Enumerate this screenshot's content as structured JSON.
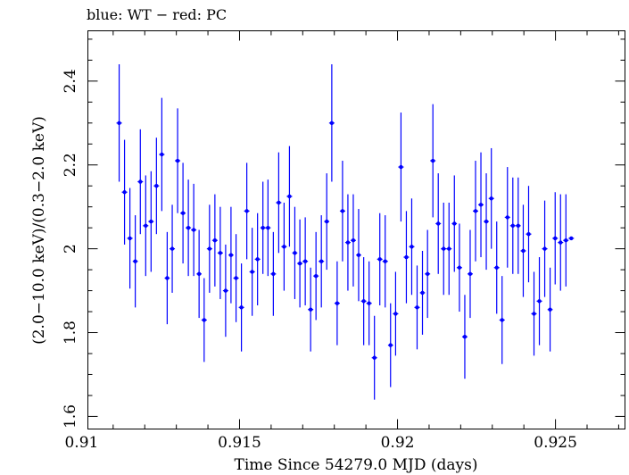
{
  "chart_data": {
    "type": "scatter",
    "title": "blue: WT − red: PC",
    "xlabel": "Time Since 54279.0 MJD (days)",
    "ylabel": "(2.0−10.0 keV)/(0.3−2.0 keV)",
    "xlim": [
      0.9102,
      0.9272
    ],
    "ylim": [
      1.57,
      2.52
    ],
    "x_ticks": [
      0.91,
      0.915,
      0.92,
      0.925
    ],
    "x_tick_labels": [
      "0.91",
      "0.915",
      "0.92",
      "0.925"
    ],
    "y_ticks": [
      1.6,
      1.8,
      2.0,
      2.2,
      2.4
    ],
    "y_tick_labels": [
      "1.6",
      "1.8",
      "2",
      "2.2",
      "2.4"
    ],
    "grid": false,
    "series": [
      {
        "color": "#0000ff",
        "x": [
          0.91119,
          0.91136,
          0.91153,
          0.9117,
          0.91186,
          0.91203,
          0.9122,
          0.91237,
          0.91254,
          0.91271,
          0.91287,
          0.91304,
          0.91321,
          0.91338,
          0.91355,
          0.91372,
          0.91388,
          0.91405,
          0.91422,
          0.91439,
          0.91456,
          0.91473,
          0.91489,
          0.91506,
          0.91523,
          0.9154,
          0.91557,
          0.91574,
          0.9159,
          0.91607,
          0.91624,
          0.91641,
          0.91658,
          0.91675,
          0.91691,
          0.91708,
          0.91725,
          0.91742,
          0.91759,
          0.91776,
          0.91792,
          0.91809,
          0.91826,
          0.91843,
          0.9186,
          0.91877,
          0.91893,
          0.9191,
          0.91927,
          0.91944,
          0.91961,
          0.91978,
          0.91994,
          0.92011,
          0.92028,
          0.92045,
          0.92062,
          0.92079,
          0.92095,
          0.92112,
          0.92129,
          0.92146,
          0.92163,
          0.9218,
          0.92196,
          0.92213,
          0.9223,
          0.92247,
          0.92264,
          0.92281,
          0.92297,
          0.92314,
          0.92331,
          0.92348,
          0.92365,
          0.92382,
          0.92398,
          0.92415,
          0.92432,
          0.92449,
          0.92466,
          0.92483,
          0.92499,
          0.92516,
          0.92533,
          0.9255
        ],
        "y": [
          2.3,
          2.135,
          2.025,
          1.97,
          2.16,
          2.055,
          2.065,
          2.15,
          2.225,
          1.93,
          2.0,
          2.21,
          2.085,
          2.05,
          2.045,
          1.94,
          1.83,
          2.0,
          2.02,
          1.99,
          1.9,
          1.985,
          1.93,
          1.86,
          2.09,
          1.945,
          1.975,
          2.05,
          2.05,
          1.94,
          2.11,
          2.005,
          2.125,
          1.99,
          1.965,
          1.97,
          1.855,
          1.935,
          1.97,
          2.065,
          2.3,
          1.87,
          2.09,
          2.015,
          2.02,
          1.985,
          1.875,
          1.87,
          1.74,
          1.975,
          1.97,
          1.77,
          1.845,
          2.195,
          1.98,
          2.005,
          1.86,
          1.895,
          1.94,
          2.21,
          2.06,
          2.0,
          2.0,
          2.06,
          1.955,
          1.79,
          1.94,
          2.09,
          2.105,
          2.065,
          2.12,
          1.955,
          1.83,
          2.075,
          2.055,
          2.055,
          1.995,
          2.035,
          1.845,
          1.875,
          2.0,
          1.855,
          2.025,
          2.015,
          2.02,
          2.025
        ],
        "y_err": [
          0.14,
          0.125,
          0.12,
          0.11,
          0.125,
          0.12,
          0.12,
          0.115,
          0.135,
          0.11,
          0.105,
          0.125,
          0.12,
          0.115,
          0.11,
          0.105,
          0.1,
          0.105,
          0.11,
          0.11,
          0.11,
          0.115,
          0.105,
          0.105,
          0.115,
          0.105,
          0.11,
          0.11,
          0.115,
          0.1,
          0.12,
          0.105,
          0.12,
          0.11,
          0.105,
          0.105,
          0.1,
          0.105,
          0.11,
          0.115,
          0.14,
          0.1,
          0.12,
          0.115,
          0.11,
          0.11,
          0.105,
          0.1,
          0.1,
          0.11,
          0.11,
          0.1,
          0.1,
          0.13,
          0.11,
          0.115,
          0.1,
          0.1,
          0.105,
          0.135,
          0.12,
          0.11,
          0.11,
          0.115,
          0.105,
          0.1,
          0.105,
          0.12,
          0.125,
          0.115,
          0.12,
          0.11,
          0.105,
          0.12,
          0.115,
          0.115,
          0.11,
          0.115,
          0.1,
          0.105,
          0.115,
          0.1,
          0.11,
          0.115,
          0.11,
          0.0
        ]
      }
    ]
  }
}
